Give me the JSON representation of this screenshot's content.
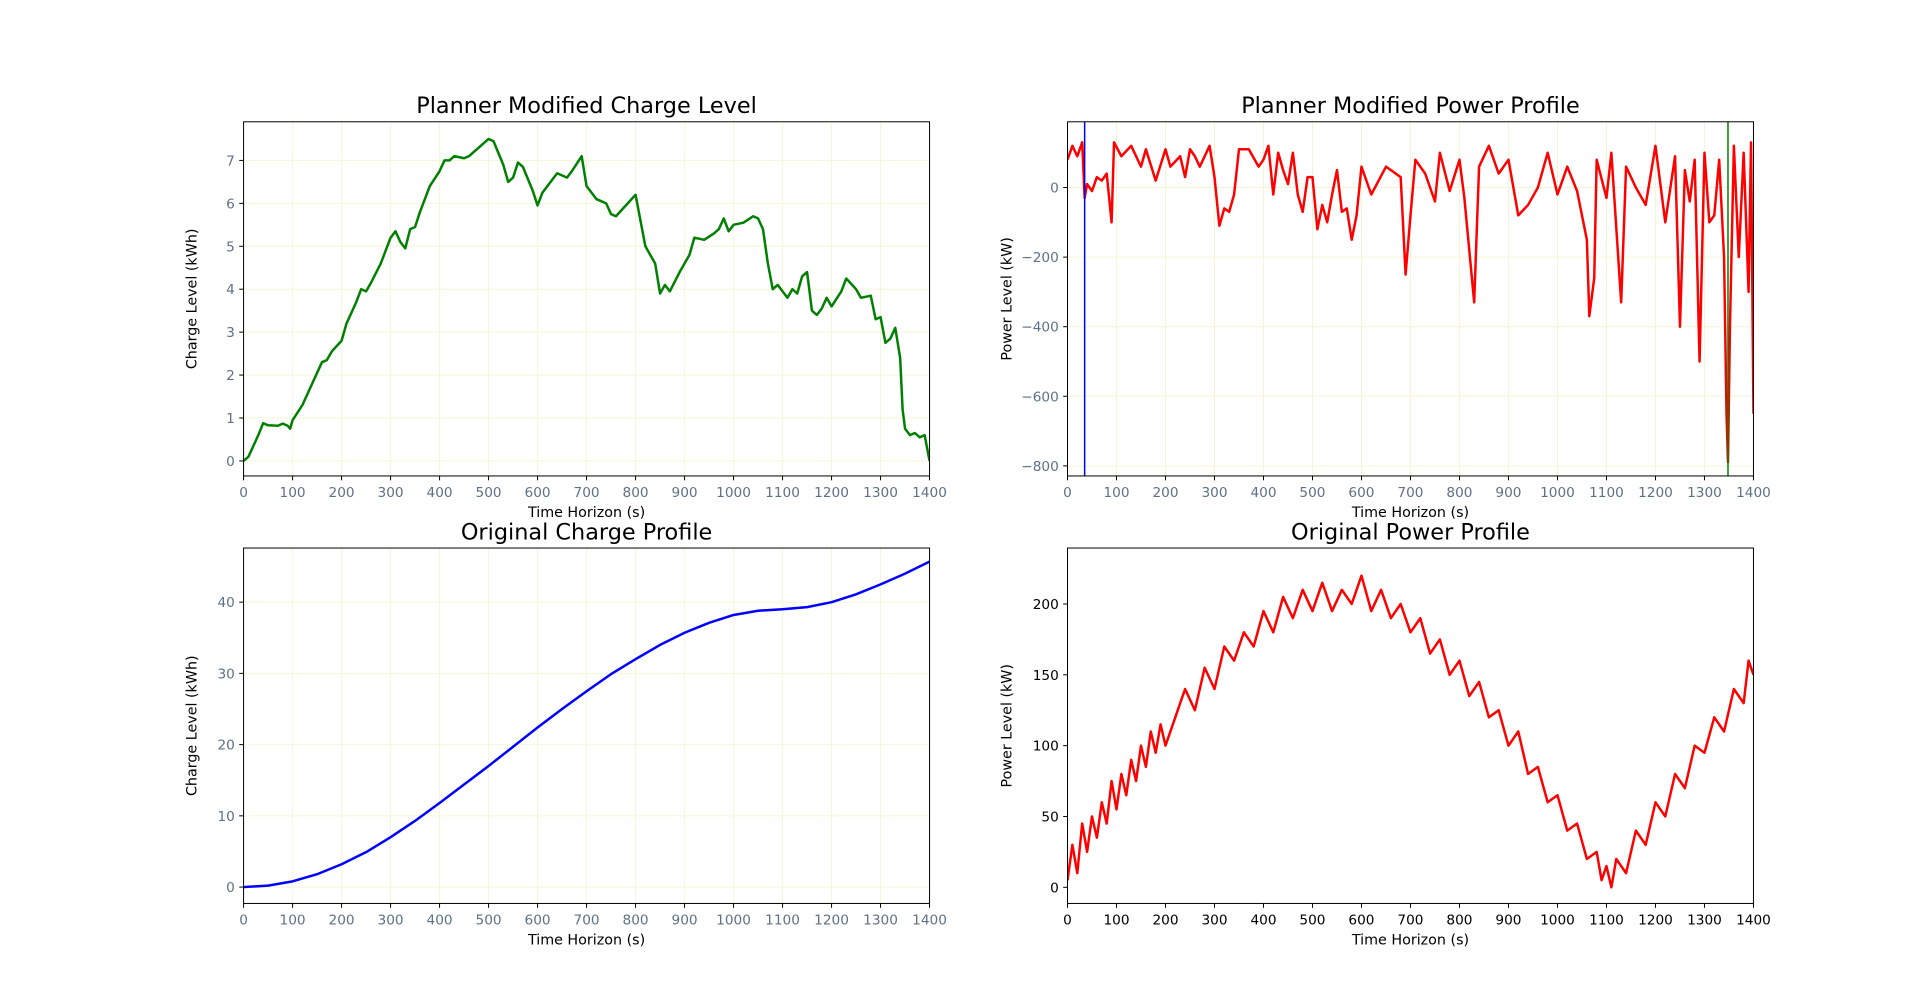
{
  "chart_data": [
    {
      "type": "line",
      "title": "Planner Modified Charge Level",
      "xlabel": "Time Horizon (s)",
      "ylabel": "Charge Level (kWh)",
      "color": "green",
      "grid": true,
      "tick_label_color": "#5f7186",
      "xlim": [
        0,
        1400
      ],
      "ylim": [
        -0.35,
        7.9
      ],
      "xticks": [
        0,
        100,
        200,
        300,
        400,
        500,
        600,
        700,
        800,
        900,
        1000,
        1100,
        1200,
        1300,
        1400
      ],
      "yticks": [
        0,
        1,
        2,
        3,
        4,
        5,
        6,
        7
      ],
      "x": [
        0,
        10,
        20,
        30,
        40,
        50,
        70,
        80,
        90,
        95,
        100,
        120,
        140,
        160,
        170,
        180,
        200,
        210,
        230,
        240,
        250,
        260,
        280,
        300,
        310,
        320,
        330,
        340,
        350,
        360,
        380,
        400,
        410,
        420,
        430,
        450,
        460,
        480,
        500,
        510,
        530,
        540,
        550,
        560,
        570,
        590,
        600,
        610,
        640,
        660,
        670,
        690,
        700,
        720,
        740,
        750,
        760,
        780,
        800,
        810,
        820,
        840,
        850,
        860,
        870,
        890,
        910,
        920,
        940,
        960,
        970,
        980,
        990,
        1000,
        1020,
        1040,
        1050,
        1060,
        1070,
        1080,
        1090,
        1110,
        1120,
        1130,
        1140,
        1150,
        1160,
        1170,
        1180,
        1190,
        1200,
        1220,
        1230,
        1250,
        1260,
        1280,
        1290,
        1300,
        1310,
        1320,
        1330,
        1340,
        1345,
        1350,
        1360,
        1370,
        1380,
        1390,
        1400
      ],
      "values": [
        0,
        0.1,
        0.35,
        0.6,
        0.88,
        0.83,
        0.82,
        0.87,
        0.82,
        0.75,
        0.95,
        1.3,
        1.8,
        2.3,
        2.35,
        2.55,
        2.8,
        3.2,
        3.7,
        4.0,
        3.95,
        4.15,
        4.6,
        5.2,
        5.35,
        5.1,
        4.95,
        5.4,
        5.45,
        5.8,
        6.4,
        6.75,
        7.0,
        7.0,
        7.1,
        7.05,
        7.1,
        7.3,
        7.5,
        7.45,
        6.9,
        6.5,
        6.6,
        6.95,
        6.85,
        6.3,
        5.95,
        6.25,
        6.7,
        6.6,
        6.75,
        7.1,
        6.4,
        6.1,
        6.0,
        5.75,
        5.7,
        5.95,
        6.2,
        5.6,
        5.0,
        4.6,
        3.9,
        4.1,
        3.95,
        4.4,
        4.8,
        5.2,
        5.15,
        5.3,
        5.4,
        5.65,
        5.35,
        5.5,
        5.55,
        5.7,
        5.65,
        5.4,
        4.6,
        4.0,
        4.1,
        3.8,
        4.0,
        3.9,
        4.3,
        4.4,
        3.5,
        3.4,
        3.55,
        3.8,
        3.6,
        3.95,
        4.25,
        4.0,
        3.8,
        3.85,
        3.3,
        3.35,
        2.75,
        2.85,
        3.1,
        2.4,
        1.2,
        0.75,
        0.6,
        0.65,
        0.55,
        0.6,
        0.0
      ]
    },
    {
      "type": "line",
      "title": "Planner Modified Power Profile",
      "xlabel": "Time Horizon (s)",
      "ylabel": "Power Level (kW)",
      "color": "red",
      "grid": true,
      "tick_label_color": "#5f7186",
      "xlim": [
        0,
        1400
      ],
      "ylim": [
        -829,
        189
      ],
      "xticks": [
        0,
        100,
        200,
        300,
        400,
        500,
        600,
        700,
        800,
        900,
        1000,
        1100,
        1200,
        1300,
        1400
      ],
      "yticks": [
        {
          "value": -800,
          "label": "−800"
        },
        {
          "value": -600,
          "label": "−600"
        },
        {
          "value": -400,
          "label": "−400"
        },
        {
          "value": -200,
          "label": "−200"
        },
        0
      ],
      "vlines": [
        {
          "x": 35,
          "color": "blue"
        },
        {
          "x": 1348,
          "color": "green"
        }
      ],
      "x": [
        0,
        10,
        20,
        30,
        35,
        40,
        50,
        60,
        70,
        80,
        90,
        95,
        110,
        130,
        150,
        160,
        180,
        200,
        210,
        230,
        240,
        250,
        260,
        270,
        280,
        290,
        300,
        310,
        320,
        330,
        340,
        350,
        370,
        390,
        400,
        410,
        420,
        430,
        440,
        450,
        460,
        470,
        480,
        490,
        500,
        510,
        520,
        530,
        540,
        550,
        560,
        570,
        580,
        590,
        600,
        620,
        650,
        680,
        690,
        700,
        710,
        730,
        750,
        760,
        780,
        800,
        810,
        820,
        830,
        840,
        860,
        880,
        900,
        920,
        940,
        960,
        980,
        1000,
        1020,
        1040,
        1060,
        1065,
        1075,
        1080,
        1100,
        1110,
        1130,
        1140,
        1160,
        1180,
        1200,
        1220,
        1240,
        1250,
        1260,
        1270,
        1280,
        1290,
        1300,
        1310,
        1320,
        1330,
        1340,
        1345,
        1348,
        1352,
        1360,
        1370,
        1380,
        1390,
        1395,
        1400
      ],
      "values": [
        80,
        120,
        90,
        130,
        -30,
        10,
        -10,
        30,
        20,
        40,
        -100,
        130,
        90,
        120,
        60,
        110,
        20,
        110,
        60,
        90,
        30,
        110,
        90,
        60,
        90,
        120,
        30,
        -110,
        -60,
        -70,
        -20,
        110,
        110,
        60,
        80,
        120,
        -20,
        100,
        50,
        10,
        100,
        -20,
        -70,
        30,
        30,
        -120,
        -50,
        -100,
        -20,
        50,
        -70,
        -60,
        -150,
        -80,
        60,
        -20,
        60,
        30,
        -250,
        -80,
        80,
        40,
        -40,
        100,
        -10,
        80,
        -30,
        -180,
        -330,
        60,
        120,
        40,
        80,
        -80,
        -50,
        0,
        100,
        -20,
        60,
        -10,
        -150,
        -370,
        -260,
        80,
        -30,
        100,
        -330,
        60,
        0,
        -50,
        120,
        -100,
        90,
        -400,
        50,
        -40,
        80,
        -500,
        100,
        -100,
        -80,
        80,
        -200,
        -650,
        -790,
        -400,
        120,
        -200,
        100,
        -300,
        130,
        -650
      ]
    },
    {
      "type": "line",
      "title": "Original Charge Profile",
      "xlabel": "Time Horizon (s)",
      "ylabel": "Charge Level (kWh)",
      "color": "blue",
      "grid": true,
      "tick_label_color": "#5f7186",
      "xlim": [
        0,
        1400
      ],
      "ylim": [
        -2.3,
        47.6
      ],
      "xticks": [
        0,
        100,
        200,
        300,
        400,
        500,
        600,
        700,
        800,
        900,
        1000,
        1100,
        1200,
        1300,
        1400
      ],
      "yticks": [
        0,
        10,
        20,
        30,
        40
      ],
      "x": [
        0,
        50,
        100,
        150,
        200,
        250,
        300,
        350,
        400,
        450,
        500,
        550,
        600,
        650,
        700,
        750,
        800,
        850,
        900,
        950,
        1000,
        1050,
        1100,
        1150,
        1200,
        1250,
        1300,
        1350,
        1400
      ],
      "values": [
        0,
        0.2,
        0.8,
        1.8,
        3.2,
        4.9,
        7.0,
        9.3,
        11.8,
        14.4,
        17.0,
        19.7,
        22.4,
        25.0,
        27.5,
        29.9,
        32.0,
        34.0,
        35.7,
        37.1,
        38.2,
        38.8,
        39.0,
        39.3,
        40.0,
        41.1,
        42.5,
        44.0,
        45.7
      ]
    },
    {
      "type": "line",
      "title": "Original Power Profile",
      "xlabel": "Time Horizon (s)",
      "ylabel": "Power Level (kW)",
      "color": "red",
      "grid": false,
      "tick_label_color": "#000000",
      "xlim": [
        0,
        1400
      ],
      "ylim": [
        -11.4,
        239.5
      ],
      "xticks": [
        0,
        100,
        200,
        300,
        400,
        500,
        600,
        700,
        800,
        900,
        1000,
        1100,
        1200,
        1300,
        1400
      ],
      "yticks": [
        0,
        50,
        100,
        150,
        200
      ],
      "x": [
        0,
        10,
        20,
        30,
        40,
        50,
        60,
        70,
        80,
        90,
        100,
        110,
        120,
        130,
        140,
        150,
        160,
        170,
        180,
        190,
        200,
        220,
        240,
        260,
        280,
        300,
        320,
        340,
        360,
        380,
        400,
        420,
        440,
        460,
        480,
        500,
        520,
        540,
        560,
        580,
        600,
        620,
        640,
        660,
        680,
        700,
        720,
        740,
        760,
        780,
        800,
        820,
        840,
        860,
        880,
        900,
        920,
        940,
        960,
        980,
        1000,
        1020,
        1040,
        1060,
        1080,
        1090,
        1100,
        1110,
        1120,
        1140,
        1160,
        1180,
        1200,
        1220,
        1240,
        1260,
        1280,
        1300,
        1320,
        1340,
        1360,
        1380,
        1390,
        1400
      ],
      "values": [
        5,
        30,
        10,
        45,
        25,
        50,
        35,
        60,
        45,
        75,
        55,
        80,
        65,
        90,
        75,
        100,
        85,
        110,
        95,
        115,
        100,
        120,
        140,
        125,
        155,
        140,
        170,
        160,
        180,
        170,
        195,
        180,
        205,
        190,
        210,
        195,
        215,
        195,
        210,
        200,
        220,
        195,
        210,
        190,
        200,
        180,
        190,
        165,
        175,
        150,
        160,
        135,
        145,
        120,
        125,
        100,
        110,
        80,
        85,
        60,
        65,
        40,
        45,
        20,
        25,
        5,
        15,
        0,
        20,
        10,
        40,
        30,
        60,
        50,
        80,
        70,
        100,
        95,
        120,
        110,
        140,
        130,
        160,
        150
      ]
    }
  ]
}
